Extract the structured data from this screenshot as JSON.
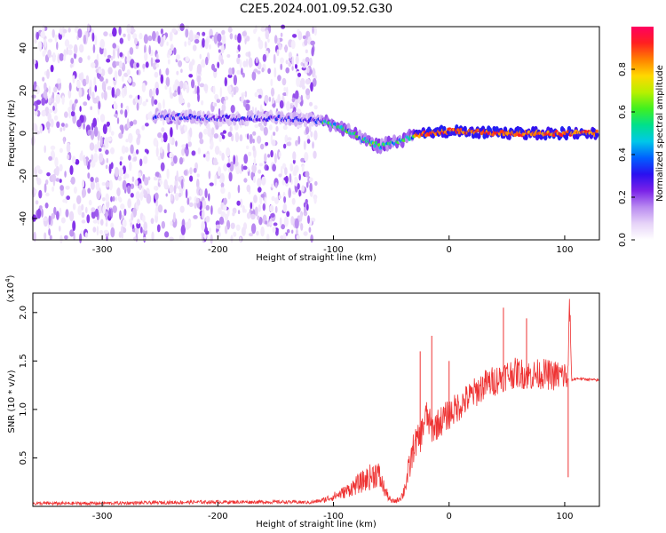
{
  "title": "C2E5.2024.001.09.52.G30",
  "chart_data": [
    {
      "type": "heatmap",
      "name": "spectrogram",
      "xlabel": "Height of straight line (km)",
      "ylabel": "Frequency (Hz)",
      "xlim": [
        -360,
        130
      ],
      "ylim": [
        -50,
        50
      ],
      "xticks": [
        -300,
        -200,
        -100,
        0,
        100
      ],
      "yticks": [
        -40,
        -20,
        0,
        20,
        40
      ],
      "grid": false,
      "colorbar": {
        "label": "Normalized spectral amplitude",
        "range": [
          0.0,
          1.0
        ],
        "ticks": [
          0.0,
          0.2,
          0.4,
          0.6,
          0.8
        ],
        "tick_labels": [
          "0.0",
          "0.2",
          "0.4",
          "0.6",
          "0.8"
        ],
        "colormap": [
          "#ffffff",
          "#e6d3f8",
          "#b98af0",
          "#7a22e8",
          "#2a10f0",
          "#0060ff",
          "#00c8e8",
          "#00e08c",
          "#40f020",
          "#b8f000",
          "#ffd800",
          "#ff8000",
          "#ff2020",
          "#ff0060"
        ]
      },
      "ridge_track": [
        {
          "x": -250,
          "f": 8
        },
        {
          "x": -200,
          "f": 7
        },
        {
          "x": -150,
          "f": 7
        },
        {
          "x": -110,
          "f": 6
        },
        {
          "x": -90,
          "f": 2
        },
        {
          "x": -75,
          "f": -3
        },
        {
          "x": -60,
          "f": -6
        },
        {
          "x": -45,
          "f": -4
        },
        {
          "x": -30,
          "f": -1
        },
        {
          "x": 0,
          "f": 1
        },
        {
          "x": 50,
          "f": 0
        },
        {
          "x": 100,
          "f": 0
        },
        {
          "x": 130,
          "f": 0
        }
      ]
    },
    {
      "type": "line",
      "name": "snr",
      "xlabel": "Height of straight line (km)",
      "ylabel": "SNR (10 * v/v)",
      "y_multiplier": "(x10^4)",
      "xlim": [
        -360,
        130
      ],
      "ylim": [
        0,
        22000
      ],
      "xticks": [
        -300,
        -200,
        -100,
        0,
        100
      ],
      "yticks": [
        5000,
        10000,
        15000,
        20000
      ],
      "ytick_labels": [
        "0.5",
        "1.0",
        "1.5",
        "2.0"
      ],
      "color": "#ee3333",
      "series": [
        {
          "name": "SNR",
          "x": [
            -360,
            -330,
            -300,
            -270,
            -240,
            -210,
            -180,
            -160,
            -140,
            -120,
            -110,
            -100,
            -90,
            -80,
            -70,
            -62,
            -55,
            -50,
            -45,
            -40,
            -35,
            -30,
            -25,
            -20,
            -15,
            -10,
            -5,
            0,
            10,
            20,
            30,
            40,
            50,
            60,
            70,
            80,
            90,
            100,
            103,
            104,
            106,
            110,
            120,
            130
          ],
          "y": [
            300,
            300,
            320,
            350,
            400,
            450,
            450,
            450,
            450,
            400,
            600,
            1000,
            1500,
            2200,
            2900,
            3500,
            1500,
            500,
            600,
            1200,
            3500,
            6500,
            7000,
            9500,
            8000,
            8500,
            9000,
            9500,
            10500,
            11500,
            12500,
            13000,
            13600,
            13800,
            13500,
            13700,
            13500,
            13500,
            13200,
            22000,
            13000,
            13200,
            13100,
            13000
          ]
        }
      ],
      "spikes": [
        {
          "x": -15,
          "y": 17600
        },
        {
          "x": -25,
          "y": 16000
        },
        {
          "x": 0,
          "y": 15000
        },
        {
          "x": 47,
          "y": 20500
        },
        {
          "x": 67,
          "y": 19400
        },
        {
          "x": 104,
          "y": 22000
        },
        {
          "x": 103,
          "y": 3000
        }
      ]
    }
  ]
}
